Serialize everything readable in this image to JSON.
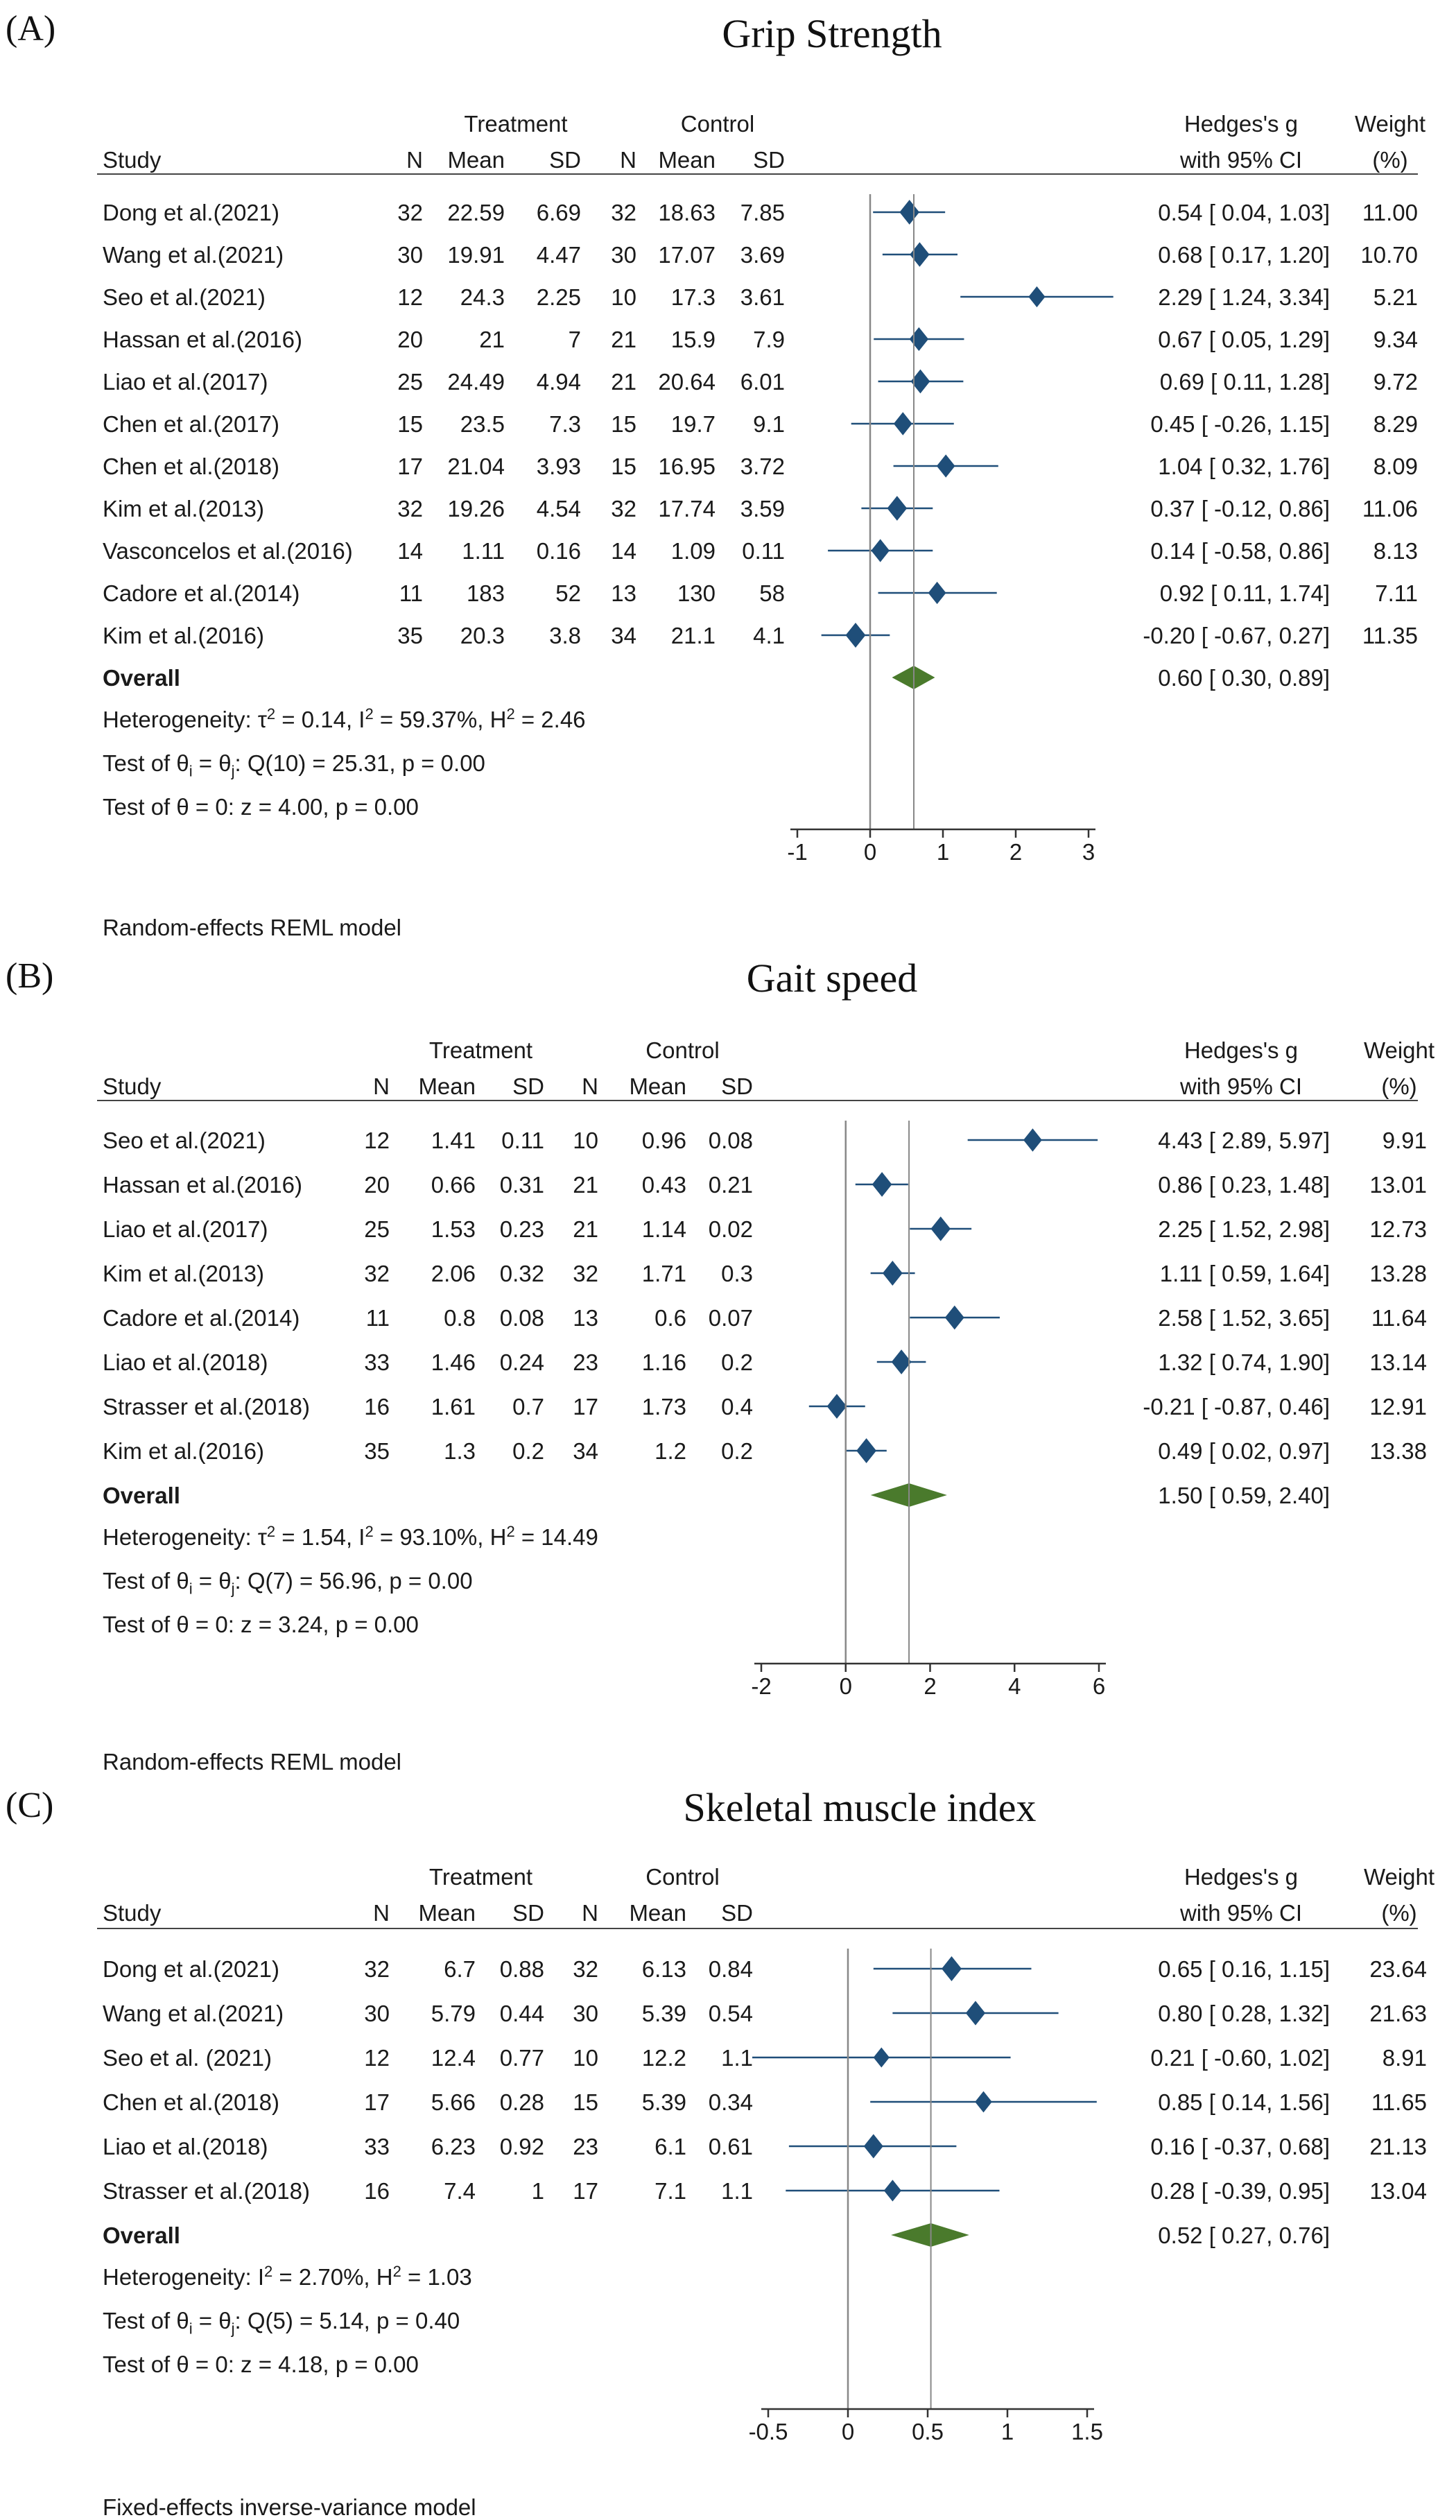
{
  "colors": {
    "marker": "#1f4e79",
    "ci_line": "#1f4e79",
    "diamond": "#4a7a2c",
    "axis": "#333333",
    "ref_line": "#888888"
  },
  "chart_data": [
    {
      "type": "forest",
      "letter": "(A)",
      "title": "Grip Strength",
      "headers": {
        "treatment": "Treatment",
        "control": "Control",
        "study": "Study",
        "n": "N",
        "mean": "Mean",
        "sd": "SD",
        "effect_line1": "Hedges's g",
        "effect_line2": "with 95% CI",
        "weight_line1": "Weight",
        "weight_line2": "(%)"
      },
      "xlim": [
        -1,
        3
      ],
      "ticks": [
        "-1",
        "0",
        "1",
        "2",
        "3"
      ],
      "tick_values": [
        -1,
        0,
        1,
        2,
        3
      ],
      "studies": [
        {
          "study": "Dong et al.(2021)",
          "tn": "32",
          "tmean": "22.59",
          "tsd": "6.69",
          "cn": "32",
          "cmean": "18.63",
          "csd": "7.85",
          "g": 0.54,
          "lo": 0.04,
          "hi": 1.03,
          "ci_text": "0.54 [ 0.04, 1.03]",
          "weight": "11.00",
          "w": 11.0
        },
        {
          "study": "Wang et al.(2021)",
          "tn": "30",
          "tmean": "19.91",
          "tsd": "4.47",
          "cn": "30",
          "cmean": "17.07",
          "csd": "3.69",
          "g": 0.68,
          "lo": 0.17,
          "hi": 1.2,
          "ci_text": "0.68 [ 0.17, 1.20]",
          "weight": "10.70",
          "w": 10.7
        },
        {
          "study": "Seo et al.(2021)",
          "tn": "12",
          "tmean": "24.3",
          "tsd": "2.25",
          "cn": "10",
          "cmean": "17.3",
          "csd": "3.61",
          "g": 2.29,
          "lo": 1.24,
          "hi": 3.34,
          "ci_text": "2.29 [ 1.24, 3.34]",
          "weight": "5.21",
          "w": 5.21
        },
        {
          "study": "Hassan et al.(2016)",
          "tn": "20",
          "tmean": "21",
          "tsd": "7",
          "cn": "21",
          "cmean": "15.9",
          "csd": "7.9",
          "g": 0.67,
          "lo": 0.05,
          "hi": 1.29,
          "ci_text": "0.67 [ 0.05, 1.29]",
          "weight": "9.34",
          "w": 9.34
        },
        {
          "study": "Liao et al.(2017)",
          "tn": "25",
          "tmean": "24.49",
          "tsd": "4.94",
          "cn": "21",
          "cmean": "20.64",
          "csd": "6.01",
          "g": 0.69,
          "lo": 0.11,
          "hi": 1.28,
          "ci_text": "0.69 [ 0.11, 1.28]",
          "weight": "9.72",
          "w": 9.72
        },
        {
          "study": "Chen et al.(2017)",
          "tn": "15",
          "tmean": "23.5",
          "tsd": "7.3",
          "cn": "15",
          "cmean": "19.7",
          "csd": "9.1",
          "g": 0.45,
          "lo": -0.26,
          "hi": 1.15,
          "ci_text": "0.45 [ -0.26, 1.15]",
          "weight": "8.29",
          "w": 8.29
        },
        {
          "study": "Chen et al.(2018)",
          "tn": "17",
          "tmean": "21.04",
          "tsd": "3.93",
          "cn": "15",
          "cmean": "16.95",
          "csd": "3.72",
          "g": 1.04,
          "lo": 0.32,
          "hi": 1.76,
          "ci_text": "1.04 [ 0.32, 1.76]",
          "weight": "8.09",
          "w": 8.09
        },
        {
          "study": "Kim et al.(2013)",
          "tn": "32",
          "tmean": "19.26",
          "tsd": "4.54",
          "cn": "32",
          "cmean": "17.74",
          "csd": "3.59",
          "g": 0.37,
          "lo": -0.12,
          "hi": 0.86,
          "ci_text": "0.37 [ -0.12, 0.86]",
          "weight": "11.06",
          "w": 11.06
        },
        {
          "study": "Vasconcelos et al.(2016)",
          "tn": "14",
          "tmean": "1.11",
          "tsd": "0.16",
          "cn": "14",
          "cmean": "1.09",
          "csd": "0.11",
          "g": 0.14,
          "lo": -0.58,
          "hi": 0.86,
          "ci_text": "0.14 [ -0.58, 0.86]",
          "weight": "8.13",
          "w": 8.13
        },
        {
          "study": "Cadore et al.(2014)",
          "tn": "11",
          "tmean": "183",
          "tsd": "52",
          "cn": "13",
          "cmean": "130",
          "csd": "58",
          "g": 0.92,
          "lo": 0.11,
          "hi": 1.74,
          "ci_text": "0.92 [ 0.11, 1.74]",
          "weight": "7.11",
          "w": 7.11
        },
        {
          "study": "Kim et al.(2016)",
          "tn": "35",
          "tmean": "20.3",
          "tsd": "3.8",
          "cn": "34",
          "cmean": "21.1",
          "csd": "4.1",
          "g": -0.2,
          "lo": -0.67,
          "hi": 0.27,
          "ci_text": "-0.20 [ -0.67, 0.27]",
          "weight": "11.35",
          "w": 11.35
        }
      ],
      "overall": {
        "label": "Overall",
        "g": 0.6,
        "lo": 0.3,
        "hi": 0.89,
        "ci_text": "0.60 [ 0.30, 0.89]"
      },
      "heterogeneity": {
        "prefix": "Heterogeneity: ",
        "tau2": "0.14",
        "i2": "59.37%",
        "h2": "2.46"
      },
      "q_test": {
        "stat": "Q(10) = 25.31, p = 0.00"
      },
      "z_test": "Test of θ = 0: z = 4.00, p = 0.00",
      "model": "Random-effects REML model"
    },
    {
      "type": "forest",
      "letter": "(B)",
      "title": "Gait speed",
      "headers": {
        "treatment": "Treatment",
        "control": "Control",
        "study": "Study",
        "n": "N",
        "mean": "Mean",
        "sd": "SD",
        "effect_line1": "Hedges's g",
        "effect_line2": "with 95% CI",
        "weight_line1": "Weight",
        "weight_line2": "(%)"
      },
      "xlim": [
        -2,
        6
      ],
      "ticks": [
        "-2",
        "0",
        "2",
        "4",
        "6"
      ],
      "tick_values": [
        -2,
        0,
        2,
        4,
        6
      ],
      "studies": [
        {
          "study": "Seo et al.(2021)",
          "tn": "12",
          "tmean": "1.41",
          "tsd": "0.11",
          "cn": "10",
          "cmean": "0.96",
          "csd": "0.08",
          "g": 4.43,
          "lo": 2.89,
          "hi": 5.97,
          "ci_text": "4.43 [ 2.89, 5.97]",
          "weight": "9.91",
          "w": 9.91
        },
        {
          "study": "Hassan et al.(2016)",
          "tn": "20",
          "tmean": "0.66",
          "tsd": "0.31",
          "cn": "21",
          "cmean": "0.43",
          "csd": "0.21",
          "g": 0.86,
          "lo": 0.23,
          "hi": 1.48,
          "ci_text": "0.86 [ 0.23, 1.48]",
          "weight": "13.01",
          "w": 13.01
        },
        {
          "study": "Liao et al.(2017)",
          "tn": "25",
          "tmean": "1.53",
          "tsd": "0.23",
          "cn": "21",
          "cmean": "1.14",
          "csd": "0.02",
          "g": 2.25,
          "lo": 1.52,
          "hi": 2.98,
          "ci_text": "2.25 [ 1.52, 2.98]",
          "weight": "12.73",
          "w": 12.73
        },
        {
          "study": "Kim et al.(2013)",
          "tn": "32",
          "tmean": "2.06",
          "tsd": "0.32",
          "cn": "32",
          "cmean": "1.71",
          "csd": "0.3",
          "g": 1.11,
          "lo": 0.59,
          "hi": 1.64,
          "ci_text": "1.11 [ 0.59, 1.64]",
          "weight": "13.28",
          "w": 13.28
        },
        {
          "study": "Cadore et al.(2014)",
          "tn": "11",
          "tmean": "0.8",
          "tsd": "0.08",
          "cn": "13",
          "cmean": "0.6",
          "csd": "0.07",
          "g": 2.58,
          "lo": 1.52,
          "hi": 3.65,
          "ci_text": "2.58 [ 1.52, 3.65]",
          "weight": "11.64",
          "w": 11.64
        },
        {
          "study": "Liao et al.(2018)",
          "tn": "33",
          "tmean": "1.46",
          "tsd": "0.24",
          "cn": "23",
          "cmean": "1.16",
          "csd": "0.2",
          "g": 1.32,
          "lo": 0.74,
          "hi": 1.9,
          "ci_text": "1.32 [ 0.74, 1.90]",
          "weight": "13.14",
          "w": 13.14
        },
        {
          "study": "Strasser et al.(2018)",
          "tn": "16",
          "tmean": "1.61",
          "tsd": "0.7",
          "cn": "17",
          "cmean": "1.73",
          "csd": "0.4",
          "g": -0.21,
          "lo": -0.87,
          "hi": 0.46,
          "ci_text": "-0.21 [ -0.87, 0.46]",
          "weight": "12.91",
          "w": 12.91
        },
        {
          "study": "Kim et al.(2016)",
          "tn": "35",
          "tmean": "1.3",
          "tsd": "0.2",
          "cn": "34",
          "cmean": "1.2",
          "csd": "0.2",
          "g": 0.49,
          "lo": 0.02,
          "hi": 0.97,
          "ci_text": "0.49 [ 0.02, 0.97]",
          "weight": "13.38",
          "w": 13.38
        }
      ],
      "overall": {
        "label": "Overall",
        "g": 1.5,
        "lo": 0.59,
        "hi": 2.4,
        "ci_text": "1.50 [ 0.59, 2.40]"
      },
      "heterogeneity": {
        "prefix": "Heterogeneity: ",
        "tau2": "1.54",
        "i2": "93.10%",
        "h2": "14.49"
      },
      "q_test": {
        "stat": "Q(7) = 56.96, p = 0.00"
      },
      "z_test": "Test of θ = 0: z = 3.24, p = 0.00",
      "model": "Random-effects REML model"
    },
    {
      "type": "forest",
      "letter": "(C)",
      "title": "Skeletal muscle index",
      "headers": {
        "treatment": "Treatment",
        "control": "Control",
        "study": "Study",
        "n": "N",
        "mean": "Mean",
        "sd": "SD",
        "effect_line1": "Hedges's g",
        "effect_line2": "with 95% CI",
        "weight_line1": "Weight",
        "weight_line2": "(%)"
      },
      "xlim": [
        -0.5,
        1.5
      ],
      "ticks": [
        "-0.5",
        "0",
        "0.5",
        "1",
        "1.5"
      ],
      "tick_values": [
        -0.5,
        0,
        0.5,
        1,
        1.5
      ],
      "studies": [
        {
          "study": "Dong et al.(2021)",
          "tn": "32",
          "tmean": "6.7",
          "tsd": "0.88",
          "cn": "32",
          "cmean": "6.13",
          "csd": "0.84",
          "g": 0.65,
          "lo": 0.16,
          "hi": 1.15,
          "ci_text": "0.65 [ 0.16, 1.15]",
          "weight": "23.64",
          "w": 23.64
        },
        {
          "study": "Wang et al.(2021)",
          "tn": "30",
          "tmean": "5.79",
          "tsd": "0.44",
          "cn": "30",
          "cmean": "5.39",
          "csd": "0.54",
          "g": 0.8,
          "lo": 0.28,
          "hi": 1.32,
          "ci_text": "0.80 [ 0.28, 1.32]",
          "weight": "21.63",
          "w": 21.63
        },
        {
          "study": "Seo et al.  (2021)",
          "tn": "12",
          "tmean": "12.4",
          "tsd": "0.77",
          "cn": "10",
          "cmean": "12.2",
          "csd": "1.1",
          "g": 0.21,
          "lo": -0.6,
          "hi": 1.02,
          "ci_text": "0.21 [ -0.60, 1.02]",
          "weight": "8.91",
          "w": 8.91
        },
        {
          "study": "Chen et al.(2018)",
          "tn": "17",
          "tmean": "5.66",
          "tsd": "0.28",
          "cn": "15",
          "cmean": "5.39",
          "csd": "0.34",
          "g": 0.85,
          "lo": 0.14,
          "hi": 1.56,
          "ci_text": "0.85 [ 0.14, 1.56]",
          "weight": "11.65",
          "w": 11.65
        },
        {
          "study": "Liao et al.(2018)",
          "tn": "33",
          "tmean": "6.23",
          "tsd": "0.92",
          "cn": "23",
          "cmean": "6.1",
          "csd": "0.61",
          "g": 0.16,
          "lo": -0.37,
          "hi": 0.68,
          "ci_text": "0.16 [ -0.37, 0.68]",
          "weight": "21.13",
          "w": 21.13
        },
        {
          "study": "Strasser et al.(2018)",
          "tn": "16",
          "tmean": "7.4",
          "tsd": "1",
          "cn": "17",
          "cmean": "7.1",
          "csd": "1.1",
          "g": 0.28,
          "lo": -0.39,
          "hi": 0.95,
          "ci_text": "0.28 [ -0.39, 0.95]",
          "weight": "13.04",
          "w": 13.04
        }
      ],
      "overall": {
        "label": "Overall",
        "g": 0.52,
        "lo": 0.27,
        "hi": 0.76,
        "ci_text": "0.52 [ 0.27, 0.76]"
      },
      "heterogeneity": {
        "prefix": "Heterogeneity: ",
        "i2": "2.70%",
        "h2": "1.03"
      },
      "q_test": {
        "stat": "Q(5) = 5.14, p = 0.40"
      },
      "z_test": "Test of θ = 0: z = 4.18, p = 0.00",
      "model": "Fixed-effects inverse-variance model"
    }
  ]
}
